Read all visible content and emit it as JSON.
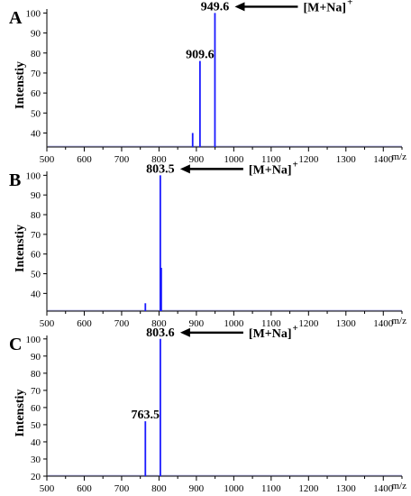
{
  "chart_data": [
    {
      "type": "bar",
      "panel": "A",
      "xlabel": "m/z",
      "ylabel": "Intenstiy",
      "xlim": [
        500,
        1450
      ],
      "ylim": [
        33,
        102
      ],
      "x_ticks": [
        "500",
        "600",
        "700",
        "800",
        "900",
        "1000",
        "1100",
        "1200",
        "1300",
        "1400"
      ],
      "y_ticks": [
        "40",
        "50",
        "60",
        "70",
        "80",
        "90",
        "100"
      ],
      "peaks": [
        {
          "x": 890.0,
          "y": 40
        },
        {
          "x": 909.6,
          "y": 76,
          "label": "909.6"
        },
        {
          "x": 949.6,
          "y": 100,
          "label": "949.6"
        }
      ],
      "annotation": {
        "text": "[M+Na]",
        "superscript": "+",
        "target": "949.6"
      }
    },
    {
      "type": "bar",
      "panel": "B",
      "xlabel": "m/z",
      "ylabel": "Intenstiy",
      "xlim": [
        500,
        1450
      ],
      "ylim": [
        31,
        102
      ],
      "x_ticks": [
        "500",
        "600",
        "700",
        "800",
        "900",
        "1000",
        "1100",
        "1200",
        "1300",
        "1400"
      ],
      "y_ticks": [
        "40",
        "50",
        "60",
        "70",
        "80",
        "90",
        "100"
      ],
      "peaks": [
        {
          "x": 763.5,
          "y": 35
        },
        {
          "x": 803.5,
          "y": 100,
          "label": "803.5"
        },
        {
          "x": 806.0,
          "y": 53
        }
      ],
      "annotation": {
        "text": "[M+Na]",
        "superscript": "+",
        "target": "803.5"
      }
    },
    {
      "type": "bar",
      "panel": "C",
      "xlabel": "m/z",
      "ylabel": "Intenstiy",
      "xlim": [
        500,
        1450
      ],
      "ylim": [
        20,
        102
      ],
      "x_ticks": [
        "500",
        "600",
        "700",
        "800",
        "900",
        "1000",
        "1100",
        "1200",
        "1300",
        "1400"
      ],
      "y_ticks": [
        "20",
        "30",
        "40",
        "50",
        "60",
        "70",
        "80",
        "90",
        "100"
      ],
      "peaks": [
        {
          "x": 763.5,
          "y": 52,
          "label": "763.5"
        },
        {
          "x": 803.6,
          "y": 100,
          "label": "803.6"
        }
      ],
      "annotation": {
        "text": "[M+Na]",
        "superscript": "+",
        "target": "803.6"
      }
    }
  ],
  "colors": {
    "peak": "#1a1aff",
    "axis": "#000000",
    "baseline": "#3333cc"
  }
}
